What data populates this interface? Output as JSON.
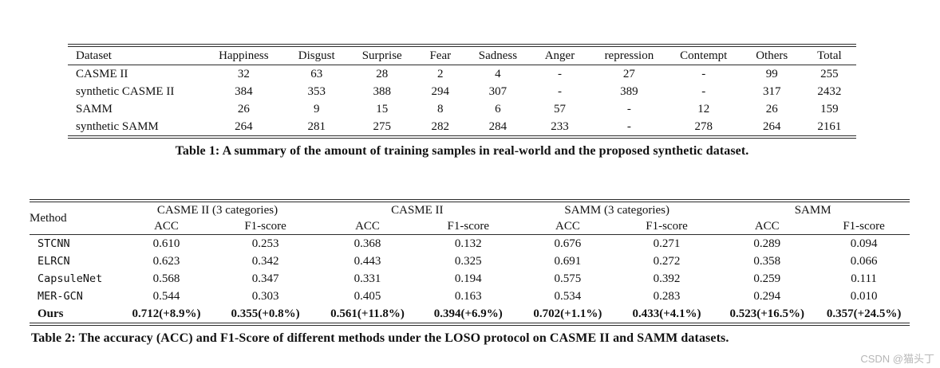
{
  "page": {
    "background": "#ffffff",
    "text_color": "#111111",
    "rule_color": "#2b2b2b"
  },
  "watermark": {
    "text": "CSDN @猫头丁",
    "color": "#b6b6b6"
  },
  "table1": {
    "caption": "Table 1: A summary of the amount of training samples in real-world and the proposed synthetic dataset.",
    "columns": [
      "Dataset",
      "Happiness",
      "Disgust",
      "Surprise",
      "Fear",
      "Sadness",
      "Anger",
      "repression",
      "Contempt",
      "Others",
      "Total"
    ],
    "rows": [
      [
        "CASME II",
        "32",
        "63",
        "28",
        "2",
        "4",
        "-",
        "27",
        "-",
        "99",
        "255"
      ],
      [
        "synthetic CASME II",
        "384",
        "353",
        "388",
        "294",
        "307",
        "-",
        "389",
        "-",
        "317",
        "2432"
      ],
      [
        "SAMM",
        "26",
        "9",
        "15",
        "8",
        "6",
        "57",
        "-",
        "12",
        "26",
        "159"
      ],
      [
        "synthetic SAMM",
        "264",
        "281",
        "275",
        "282",
        "284",
        "233",
        "-",
        "278",
        "264",
        "2161"
      ]
    ]
  },
  "table2": {
    "caption": "Table 2: The accuracy (ACC) and F1-Score of different methods under the LOSO protocol on CASME II and SAMM datasets.",
    "method_header": "Method",
    "groups": [
      "CASME II (3 categories)",
      "CASME II",
      "SAMM (3 categories)",
      "SAMM"
    ],
    "subheaders": [
      "ACC",
      "F1-score"
    ],
    "rows": [
      {
        "method": "STCNN",
        "bold": false,
        "values": [
          "0.610",
          "0.253",
          "0.368",
          "0.132",
          "0.676",
          "0.271",
          "0.289",
          "0.094"
        ]
      },
      {
        "method": "ELRCN",
        "bold": false,
        "values": [
          "0.623",
          "0.342",
          "0.443",
          "0.325",
          "0.691",
          "0.272",
          "0.358",
          "0.066"
        ]
      },
      {
        "method": "CapsuleNet",
        "bold": false,
        "values": [
          "0.568",
          "0.347",
          "0.331",
          "0.194",
          "0.575",
          "0.392",
          "0.259",
          "0.111"
        ]
      },
      {
        "method": "MER-GCN",
        "bold": false,
        "values": [
          "0.544",
          "0.303",
          "0.405",
          "0.163",
          "0.534",
          "0.283",
          "0.294",
          "0.010"
        ]
      },
      {
        "method": "Ours",
        "bold": true,
        "values": [
          "0.712(+8.9%)",
          "0.355(+0.8%)",
          "0.561(+11.8%)",
          "0.394(+6.9%)",
          "0.702(+1.1%)",
          "0.433(+4.1%)",
          "0.523(+16.5%)",
          "0.357(+24.5%)"
        ]
      }
    ]
  }
}
